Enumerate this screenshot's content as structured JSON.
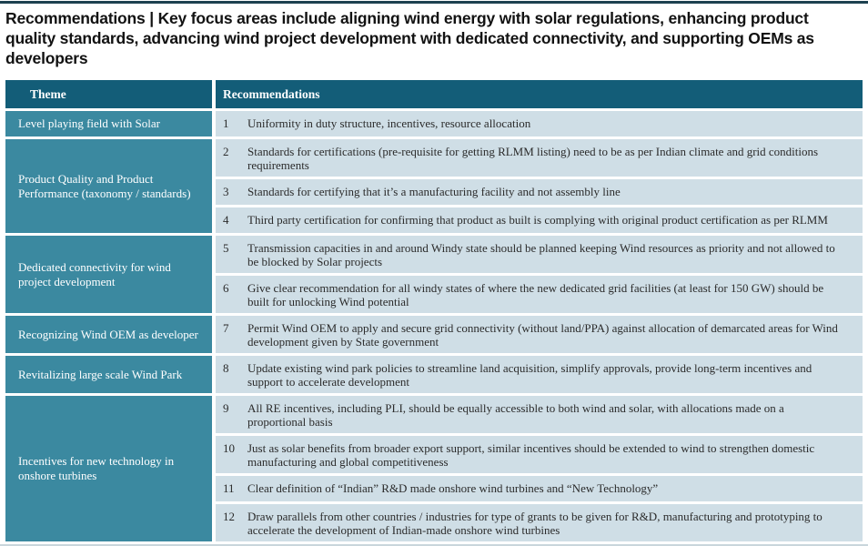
{
  "title": "Recommendations | Key focus areas include aligning wind energy with solar regulations, enhancing product quality standards, advancing wind project development with dedicated connectivity, and supporting OEMs as developers",
  "colors": {
    "header_bg": "#135d78",
    "theme_bg": "#3b89a0",
    "row_bg": "#cfdee6",
    "top_rule": "#1d4150"
  },
  "table": {
    "headers": {
      "theme": "Theme",
      "recommendations": "Recommendations"
    },
    "groups": [
      {
        "theme": "Level playing field with Solar",
        "items": [
          {
            "num": "1",
            "text": "Uniformity in duty structure, incentives, resource allocation"
          }
        ]
      },
      {
        "theme": "Product Quality and Product Performance (taxonomy / standards)",
        "items": [
          {
            "num": "2",
            "text": "Standards for certifications (pre-requisite for getting RLMM listing) need to be as per Indian climate and grid conditions requirements"
          },
          {
            "num": "3",
            "text": "Standards for certifying that it’s a manufacturing facility and not assembly line"
          },
          {
            "num": "4",
            "text": "Third party certification for confirming that product as built is complying with original product certification as per RLMM"
          }
        ]
      },
      {
        "theme": "Dedicated connectivity for wind project development",
        "items": [
          {
            "num": "5",
            "text": "Transmission capacities in and around Windy state should be planned keeping Wind resources as priority and not allowed to be blocked by Solar projects"
          },
          {
            "num": "6",
            "text": "Give clear recommendation for all windy states of where the new dedicated grid facilities (at least for 150 GW) should be built for unlocking Wind potential"
          }
        ]
      },
      {
        "theme": "Recognizing Wind OEM as developer",
        "items": [
          {
            "num": "7",
            "text": "Permit Wind OEM to apply and secure grid connectivity (without land/PPA) against allocation of demarcated areas for Wind development given by State government"
          }
        ]
      },
      {
        "theme": "Revitalizing large scale Wind Park",
        "items": [
          {
            "num": "8",
            "text": "Update existing wind park policies to streamline land acquisition, simplify approvals, provide long-term incentives and support to accelerate development"
          }
        ]
      },
      {
        "theme": "Incentives for new technology in onshore turbines",
        "items": [
          {
            "num": "9",
            "text": "All RE incentives, including PLI, should be equally accessible to both wind and solar, with allocations made on a proportional basis"
          },
          {
            "num": "10",
            "text": "Just as solar benefits from broader export support, similar incentives should be extended to wind to strengthen domestic manufacturing and global competitiveness"
          },
          {
            "num": "11",
            "text": "Clear definition of “Indian” R&D made onshore wind turbines and “New Technology”"
          },
          {
            "num": "12",
            "text": "Draw parallels from other countries / industries for type of grants to be given for R&D, manufacturing and prototyping to accelerate the development of Indian-made onshore wind turbines"
          }
        ]
      }
    ]
  }
}
